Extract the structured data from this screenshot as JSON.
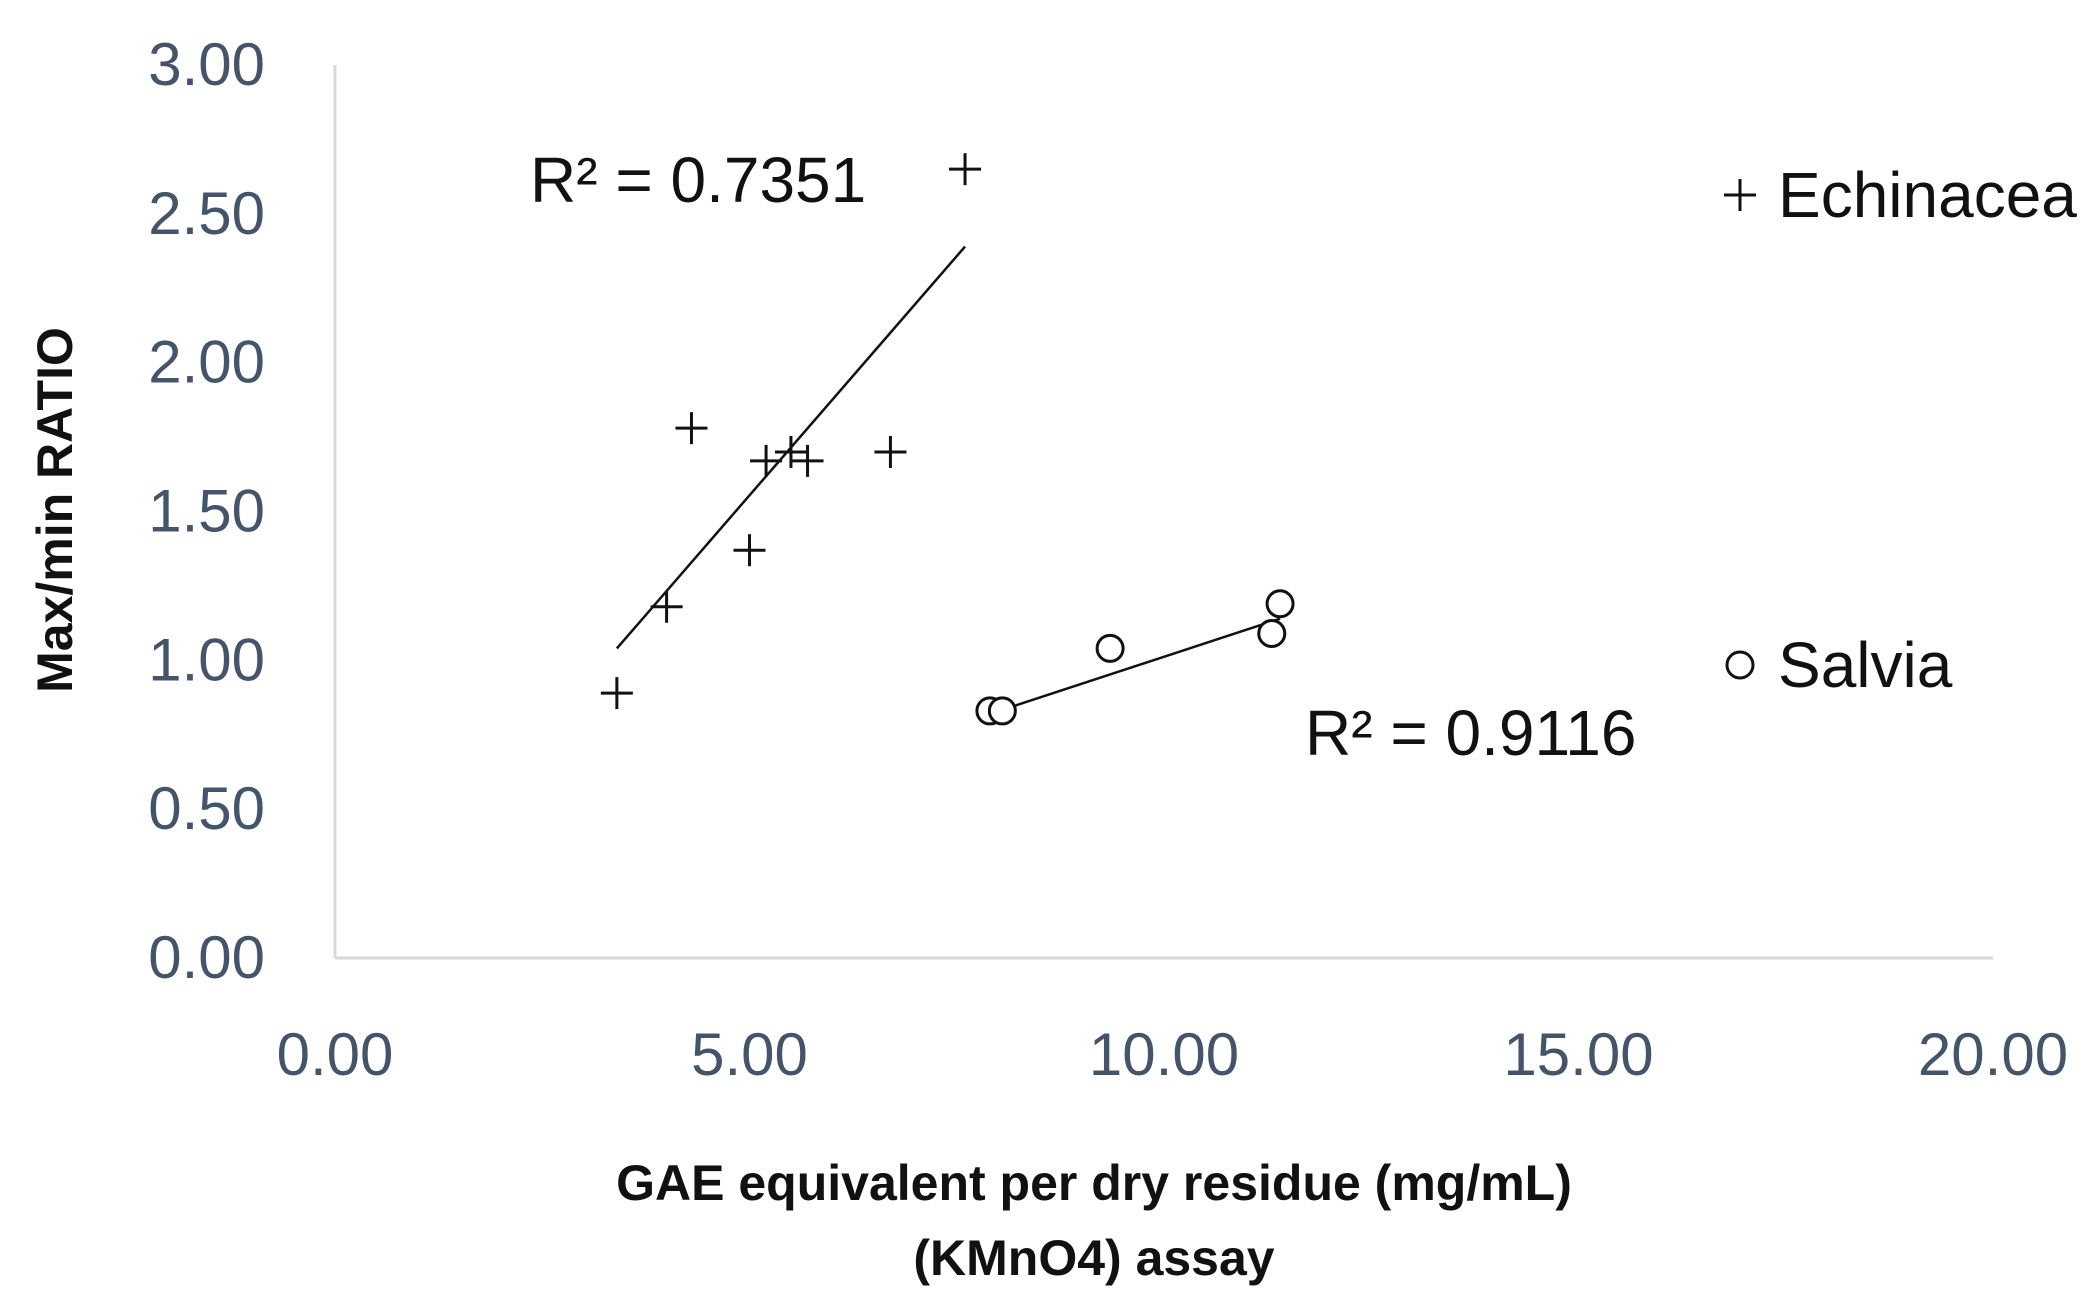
{
  "chart_data": {
    "type": "scatter",
    "xlabel_lines": [
      "GAE equivalent per dry residue (mg/mL)",
      "(KMnO4) assay"
    ],
    "ylabel": "Max/min RATIO",
    "xlim": [
      0,
      20
    ],
    "ylim": [
      0,
      3
    ],
    "x_ticks": [
      "0.00",
      "5.00",
      "10.00",
      "15.00",
      "20.00"
    ],
    "y_ticks": [
      "0.00",
      "0.50",
      "1.00",
      "1.50",
      "2.00",
      "2.50",
      "3.00"
    ],
    "x_tick_values": [
      0,
      5,
      10,
      15,
      20
    ],
    "y_tick_values": [
      0,
      0.5,
      1,
      1.5,
      2,
      2.5,
      3
    ],
    "grid": false,
    "legend": "right",
    "series": [
      {
        "name": "Echinacea",
        "marker": "plus",
        "points": [
          [
            3.4,
            0.89
          ],
          [
            4.0,
            1.18
          ],
          [
            4.3,
            1.78
          ],
          [
            5.0,
            1.37
          ],
          [
            5.2,
            1.67
          ],
          [
            5.5,
            1.7
          ],
          [
            5.7,
            1.67
          ],
          [
            6.7,
            1.7
          ],
          [
            7.6,
            2.65
          ]
        ],
        "trendline": {
          "x": [
            3.4,
            7.6
          ],
          "y": [
            1.04,
            2.39
          ]
        },
        "r2_label": "R² = 0.7351"
      },
      {
        "name": "Salvia",
        "marker": "circle",
        "points": [
          [
            7.9,
            0.83
          ],
          [
            8.05,
            0.83
          ],
          [
            9.35,
            1.04
          ],
          [
            11.3,
            1.09
          ],
          [
            11.4,
            1.19
          ]
        ],
        "trendline": {
          "x": [
            7.9,
            11.4
          ],
          "y": [
            0.82,
            1.14
          ]
        },
        "r2_label": "R² = 0.9116"
      }
    ]
  }
}
